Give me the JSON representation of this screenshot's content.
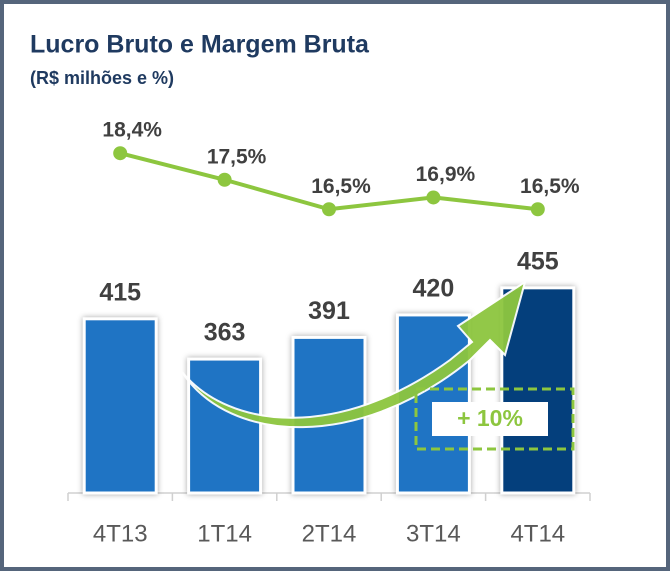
{
  "chart_data": {
    "type": "bar",
    "title": "Lucro Bruto e Margem Bruta",
    "subtitle": "(R$ milhões e %)",
    "categories": [
      "4T13",
      "1T14",
      "2T14",
      "3T14",
      "4T14"
    ],
    "series": [
      {
        "type": "bar",
        "values": [
          415,
          363,
          391,
          420,
          455
        ],
        "colors": [
          "#1f74c4",
          "#1f74c4",
          "#1f74c4",
          "#1f74c4",
          "#043f7c"
        ]
      },
      {
        "type": "line",
        "axis": "y2",
        "values": [
          18.4,
          17.5,
          16.5,
          16.9,
          16.5
        ],
        "value_labels": [
          "18,4%",
          "17,5%",
          "16,5%",
          "16,9%",
          "16,5%"
        ],
        "color": "#8dc63f"
      }
    ],
    "ylim": [
      190,
      500
    ],
    "y2lim": [
      14,
      20
    ],
    "annotation": "+ 10%"
  }
}
